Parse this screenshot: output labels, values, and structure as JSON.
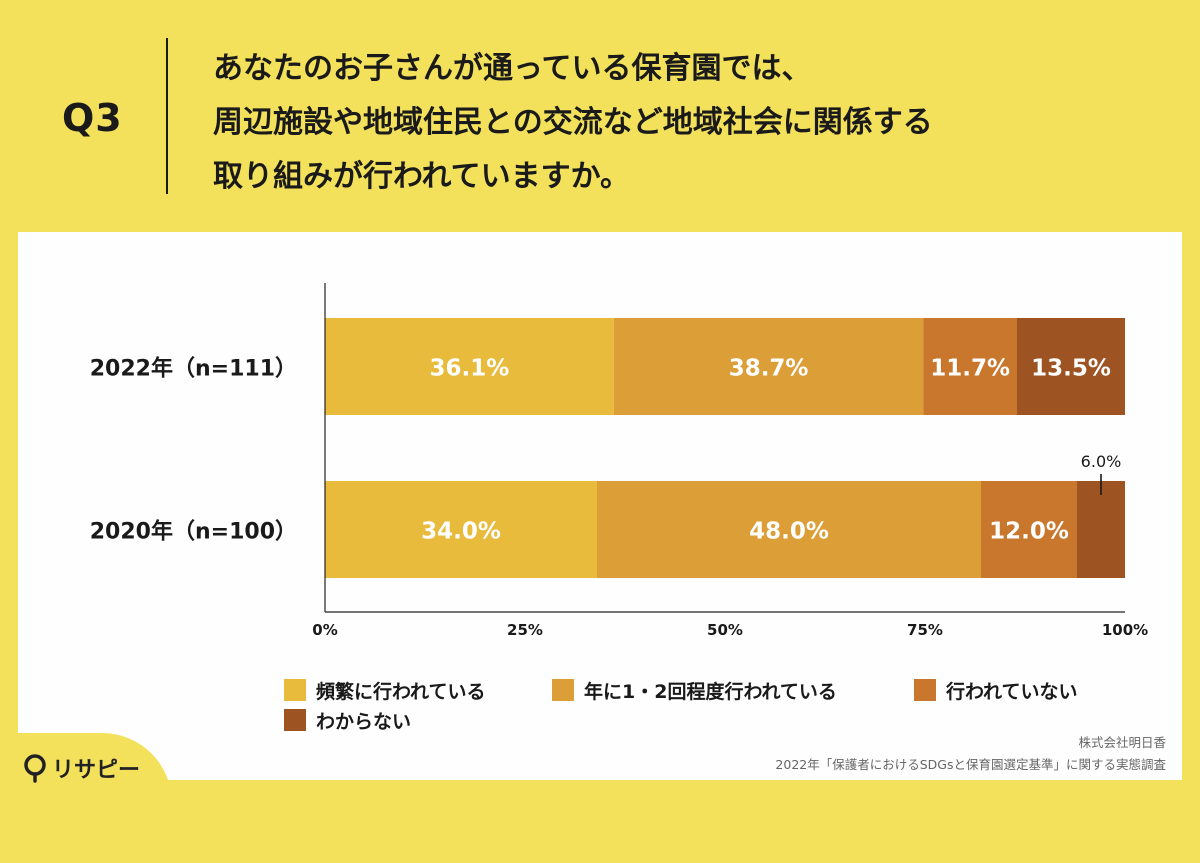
{
  "header": {
    "question_number": "Q3",
    "question_lines": [
      "あなたのお子さんが通っている保育園では、",
      "周辺施設や地域住民との交流など地域社会に関係する",
      "取り組みが行われていますか。"
    ]
  },
  "chart_data": {
    "type": "bar",
    "orientation": "horizontal",
    "stacked": true,
    "categories": [
      "2022年（n=111）",
      "2020年（n=100）"
    ],
    "series": [
      {
        "name": "頻繁に行われている",
        "values": [
          36.1,
          34.0
        ],
        "labels": [
          "36.1%",
          "34.0%"
        ],
        "color": "#e8bb3c"
      },
      {
        "name": "年に1・2回程度行われている",
        "values": [
          38.7,
          48.0
        ],
        "labels": [
          "38.7%",
          "48.0%"
        ],
        "color": "#dc9e36"
      },
      {
        "name": "行われていない",
        "values": [
          11.7,
          12.0
        ],
        "labels": [
          "11.7%",
          "12.0%"
        ],
        "color": "#c8772c"
      },
      {
        "name": "わからない",
        "values": [
          13.5,
          6.0
        ],
        "labels": [
          "13.5%",
          "6.0%"
        ],
        "color": "#9e5323"
      }
    ],
    "xlim": [
      0,
      100
    ],
    "xticks": [
      0,
      25,
      50,
      75,
      100
    ],
    "xtick_labels": [
      "0%",
      "25%",
      "50%",
      "75%",
      "100%"
    ],
    "legend_position": "bottom",
    "grid": false
  },
  "source": {
    "company": "株式会社明日香",
    "survey": "2022年「保護者におけるSDGsと保育園選定基準」に関する実態調査"
  },
  "logo": {
    "text": "リサピー"
  }
}
